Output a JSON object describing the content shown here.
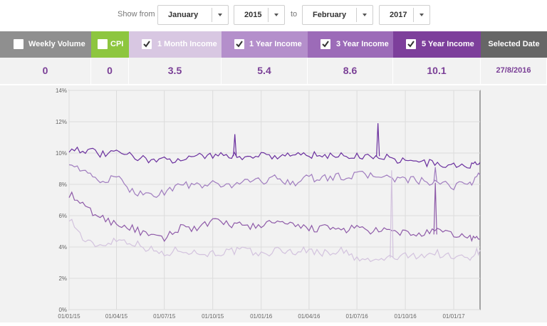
{
  "filters": {
    "show_from_label": "Show from",
    "to_label": "to",
    "from_month": "January",
    "from_year": "2015",
    "to_month": "February",
    "to_year": "2017"
  },
  "kpis": [
    {
      "label": "Weekly Volume",
      "value": "0",
      "checked": false,
      "color": "#8f8f8f"
    },
    {
      "label": "CPI",
      "value": "0",
      "checked": false,
      "color": "#8dc63f"
    },
    {
      "label": "1 Month Income",
      "value": "3.5",
      "checked": true,
      "color": "#d8c7e2"
    },
    {
      "label": "1 Year Income",
      "value": "5.4",
      "checked": true,
      "color": "#b48fcb"
    },
    {
      "label": "3 Year Income",
      "value": "8.6",
      "checked": true,
      "color": "#9c6bb8"
    },
    {
      "label": "5 Year Income",
      "value": "10.1",
      "checked": true,
      "color": "#7d3f9b"
    },
    {
      "label": "Selected Date",
      "value": "27/8/2016",
      "checked": false,
      "color": "#666666"
    }
  ],
  "chart_data": {
    "type": "line",
    "title": "",
    "xlabel": "",
    "ylabel": "",
    "x_range": [
      "2015-01-01",
      "2017-02-20"
    ],
    "x_ticks": [
      "01/01/15",
      "01/04/15",
      "01/07/15",
      "01/10/15",
      "01/01/16",
      "01/04/16",
      "01/07/16",
      "01/10/16",
      "01/01/17"
    ],
    "ylim": [
      0,
      14
    ],
    "y_ticks": [
      "0%",
      "2%",
      "4%",
      "6%",
      "8%",
      "10%",
      "12%",
      "14%"
    ],
    "grid": true,
    "dates": [
      "2015-01-01",
      "2015-02-01",
      "2015-03-01",
      "2015-04-01",
      "2015-05-01",
      "2015-06-01",
      "2015-07-01",
      "2015-08-01",
      "2015-09-01",
      "2015-10-01",
      "2015-11-01",
      "2015-12-01",
      "2016-01-01",
      "2016-02-01",
      "2016-03-01",
      "2016-04-01",
      "2016-05-01",
      "2016-06-01",
      "2016-07-01",
      "2016-08-01",
      "2016-09-01",
      "2016-10-01",
      "2016-11-01",
      "2016-12-01",
      "2017-01-01",
      "2017-02-01",
      "2017-02-20"
    ],
    "series": [
      {
        "color": "#d3c3de",
        "values": [
          5.9,
          4.3,
          4.1,
          4.5,
          4.3,
          3.9,
          3.5,
          3.9,
          3.6,
          3.6,
          3.7,
          3.8,
          3.5,
          3.8,
          3.7,
          3.8,
          3.6,
          3.8,
          3.2,
          3.1,
          3.3,
          3.4,
          3.5,
          3.6,
          3.3,
          3.4,
          3.8
        ]
      },
      {
        "color": "#8e5aa8",
        "values": [
          7.4,
          6.5,
          5.9,
          5.5,
          5.2,
          4.7,
          4.5,
          5.3,
          5.2,
          5.6,
          5.5,
          5.3,
          5.4,
          5.6,
          5.3,
          5.2,
          5.2,
          5.1,
          5.2,
          5.0,
          5.0,
          4.9,
          4.8,
          5.0,
          4.8,
          4.6,
          4.5
        ]
      },
      {
        "color": "#a07cbf",
        "values": [
          9.5,
          8.7,
          8.2,
          8.4,
          7.6,
          7.3,
          7.5,
          8.0,
          7.9,
          8.0,
          7.9,
          8.3,
          8.2,
          8.4,
          8.1,
          8.4,
          8.4,
          8.5,
          8.6,
          8.6,
          8.4,
          8.3,
          8.2,
          8.0,
          7.9,
          8.1,
          8.6
        ]
      },
      {
        "color": "#6a2f9e",
        "values": [
          10.3,
          10.2,
          9.9,
          10.0,
          9.8,
          9.6,
          9.5,
          9.7,
          9.8,
          9.9,
          9.8,
          9.8,
          9.9,
          9.8,
          9.9,
          9.9,
          9.7,
          9.9,
          9.8,
          9.8,
          9.7,
          9.5,
          9.4,
          9.3,
          9.2,
          9.1,
          9.4
        ]
      }
    ],
    "spikes": [
      {
        "series_index": 3,
        "date": "2015-11-12",
        "value": 11.2
      },
      {
        "series_index": 3,
        "date": "2016-08-10",
        "value": 11.9
      },
      {
        "series_index": 1,
        "date": "2016-11-27",
        "value": 8.1
      },
      {
        "series_index": 2,
        "date": "2016-11-27",
        "value": 9.1
      },
      {
        "series_index": 0,
        "date": "2016-09-05",
        "value": 8.9
      }
    ]
  }
}
